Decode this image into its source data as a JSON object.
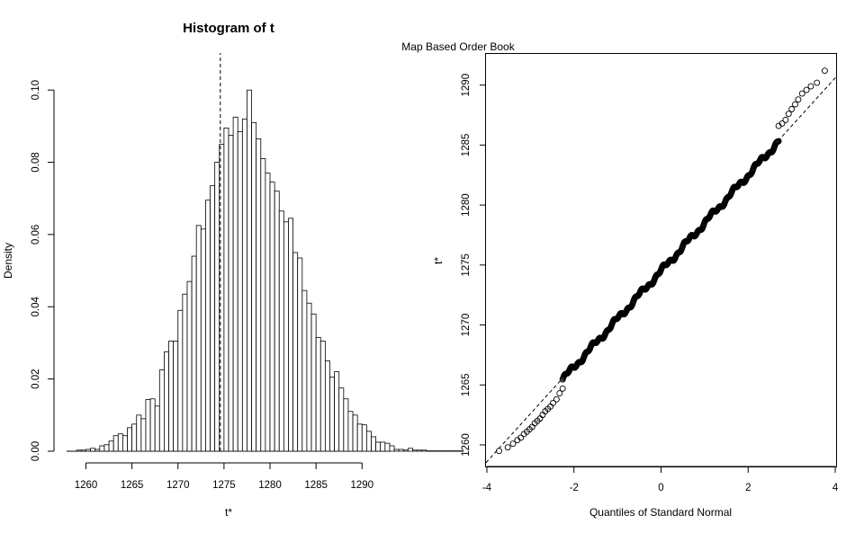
{
  "chart_data": [
    {
      "type": "bar",
      "title": "Histogram of t",
      "xlabel": "t*",
      "ylabel": "Density",
      "xlim": [
        1257.8,
        1293.2
      ],
      "ylim": [
        0,
        0.11
      ],
      "x_ticks": [
        "1260",
        "1265",
        "1270",
        "1275",
        "1280",
        "1285",
        "1290"
      ],
      "y_ticks": [
        "0.00",
        "0.02",
        "0.04",
        "0.06",
        "0.08",
        "0.10"
      ],
      "bin_width": 0.5,
      "bin_start": 1259,
      "values": [
        0.0003,
        0.0003,
        0.0005,
        0.0008,
        0.0005,
        0.0015,
        0.0018,
        0.0028,
        0.0043,
        0.0048,
        0.0043,
        0.0065,
        0.0075,
        0.01,
        0.009,
        0.0143,
        0.0145,
        0.0125,
        0.0225,
        0.0275,
        0.0305,
        0.0305,
        0.039,
        0.0435,
        0.047,
        0.054,
        0.0625,
        0.0615,
        0.0695,
        0.0735,
        0.08,
        0.085,
        0.0895,
        0.0875,
        0.0925,
        0.0885,
        0.092,
        0.1,
        0.091,
        0.0865,
        0.081,
        0.077,
        0.0745,
        0.072,
        0.0665,
        0.0635,
        0.0645,
        0.055,
        0.0535,
        0.0445,
        0.041,
        0.038,
        0.0315,
        0.0305,
        0.025,
        0.0205,
        0.022,
        0.0175,
        0.0145,
        0.011,
        0.01,
        0.0075,
        0.0073,
        0.0055,
        0.004,
        0.0025,
        0.0025,
        0.0022,
        0.0015,
        0.0005,
        0.0005,
        0.0003,
        0.0008,
        0.0003,
        0.0003,
        0.0003,
        0.0001,
        0.0001,
        0.0001,
        0.0001,
        0.0001,
        0.0001,
        0.0001,
        0.0001
      ],
      "reference_line_x": 1274.6,
      "grid": false
    },
    {
      "type": "scatter",
      "title": "",
      "subtitle": "Map Based Order Book",
      "xlabel": "Quantiles of Standard Normal",
      "ylabel": "t*",
      "xlim": [
        -4.02,
        4.02
      ],
      "ylim": [
        1258.2,
        1292.6
      ],
      "x_ticks": [
        "-4",
        "-2",
        "0",
        "2",
        "4"
      ],
      "y_ticks": [
        "1260",
        "1265",
        "1270",
        "1275",
        "1280",
        "1285",
        "1290"
      ],
      "reference_line": {
        "intercept": 1274.6,
        "slope": 4.0
      },
      "points": [
        [
          -3.72,
          1259.5
        ],
        [
          -3.52,
          1259.8
        ],
        [
          -3.4,
          1260.1
        ],
        [
          -3.3,
          1260.4
        ],
        [
          -3.22,
          1260.6
        ],
        [
          -3.15,
          1260.9
        ],
        [
          -3.08,
          1261.1
        ],
        [
          -3.02,
          1261.3
        ],
        [
          -2.96,
          1261.5
        ],
        [
          -2.9,
          1261.8
        ],
        [
          -2.84,
          1262.0
        ],
        [
          -2.78,
          1262.2
        ],
        [
          -2.72,
          1262.5
        ],
        [
          -2.66,
          1262.8
        ],
        [
          -2.6,
          1263.0
        ],
        [
          -2.54,
          1263.2
        ],
        [
          -2.48,
          1263.5
        ],
        [
          -2.4,
          1263.8
        ],
        [
          -2.33,
          1264.3
        ],
        [
          -2.26,
          1264.7
        ],
        [
          2.7,
          1286.6
        ],
        [
          2.78,
          1286.8
        ],
        [
          2.86,
          1287.1
        ],
        [
          2.93,
          1287.6
        ],
        [
          3.0,
          1288.0
        ],
        [
          3.08,
          1288.4
        ],
        [
          3.15,
          1288.8
        ],
        [
          3.24,
          1289.3
        ],
        [
          3.34,
          1289.6
        ],
        [
          3.44,
          1289.9
        ],
        [
          3.58,
          1290.2
        ],
        [
          3.76,
          1291.2
        ]
      ],
      "dense_range": {
        "x_from": -2.26,
        "x_to": 2.7,
        "slope": 4.0,
        "intercept": 1274.5
      },
      "grid": false
    }
  ]
}
